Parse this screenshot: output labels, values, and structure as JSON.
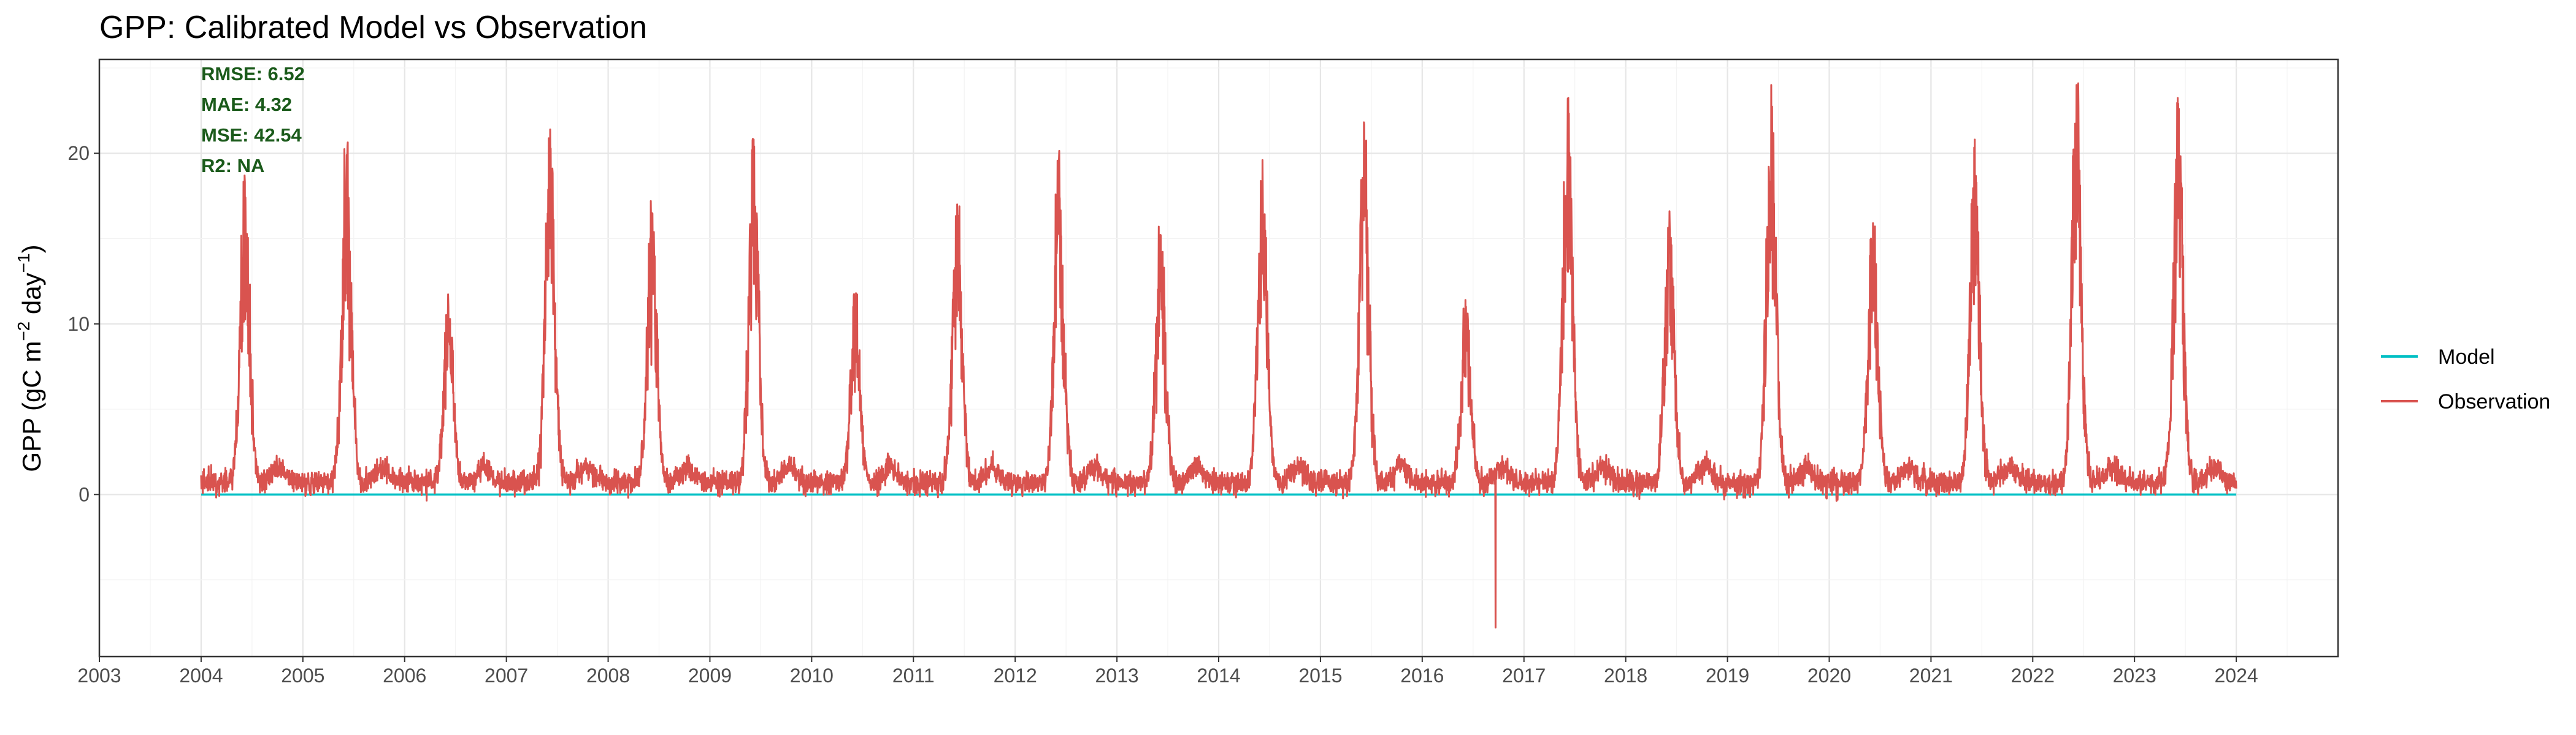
{
  "chart_data": {
    "type": "line",
    "title": "GPP: Calibrated Model vs Observation",
    "xlabel": "",
    "ylabel_parts": [
      "GPP (gC m",
      "−2",
      " day",
      "−1",
      ")"
    ],
    "xlim": [
      2003,
      2025
    ],
    "ylim": [
      -9.5,
      25.5
    ],
    "x_ticks": [
      "2003",
      "2004",
      "2005",
      "2006",
      "2007",
      "2008",
      "2009",
      "2010",
      "2011",
      "2012",
      "2013",
      "2014",
      "2015",
      "2016",
      "2017",
      "2018",
      "2019",
      "2020",
      "2021",
      "2022",
      "2023",
      "2024"
    ],
    "y_ticks": [
      0,
      10,
      20
    ],
    "grid": true,
    "legend_position": "right",
    "annotations": [
      "RMSE: 6.52",
      "MAE: 4.32",
      "MSE: 42.54",
      "R2: NA"
    ],
    "series": [
      {
        "name": "Model",
        "color": "#00bfc4",
        "x_range": [
          2004,
          2024
        ],
        "y_constant": 0
      },
      {
        "name": "Observation",
        "color": "#d9534f",
        "x_range": [
          2004,
          2024
        ],
        "observed_range": [
          -7.8,
          24.1
        ],
        "annual_peaks": [
          {
            "year": 2004,
            "peak": 18.3
          },
          {
            "year": 2005,
            "peak": 19.9
          },
          {
            "year": 2006,
            "peak": 11.0
          },
          {
            "year": 2007,
            "peak": 21.4
          },
          {
            "year": 2008,
            "peak": 16.5
          },
          {
            "year": 2009,
            "peak": 20.8
          },
          {
            "year": 2010,
            "peak": 11.2
          },
          {
            "year": 2011,
            "peak": 17.0
          },
          {
            "year": 2012,
            "peak": 19.6
          },
          {
            "year": 2013,
            "peak": 15.2
          },
          {
            "year": 2014,
            "peak": 19.6
          },
          {
            "year": 2015,
            "peak": 21.7
          },
          {
            "year": 2016,
            "peak": 11.0
          },
          {
            "year": 2017,
            "peak": 23.2
          },
          {
            "year": 2018,
            "peak": 16.6
          },
          {
            "year": 2019,
            "peak": 24.0
          },
          {
            "year": 2020,
            "peak": 15.9
          },
          {
            "year": 2021,
            "peak": 20.8
          },
          {
            "year": 2022,
            "peak": 24.0
          },
          {
            "year": 2023,
            "peak": 22.9
          }
        ]
      }
    ]
  },
  "legend": {
    "items": [
      {
        "label": "Model",
        "color": "#00bfc4"
      },
      {
        "label": "Observation",
        "color": "#d9534f"
      }
    ]
  }
}
